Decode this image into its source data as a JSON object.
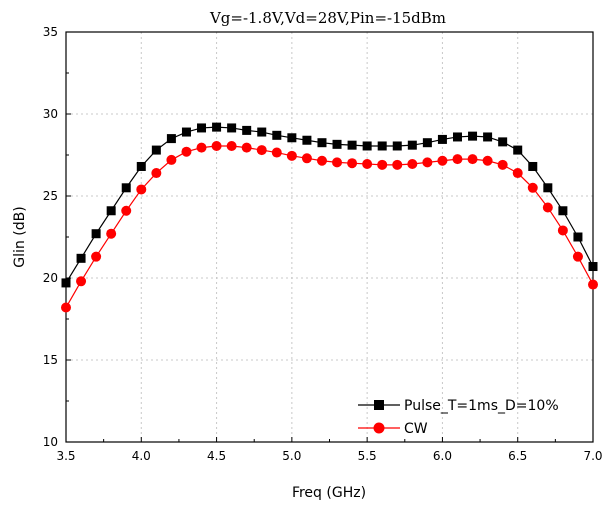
{
  "chart_data": {
    "type": "line",
    "title": "Vg=-1.8V,Vd=28V,Pin=-15dBm",
    "xlabel": "Freq (GHz)",
    "ylabel": "Glin (dB)",
    "xlim": [
      3.5,
      7.0
    ],
    "ylim": [
      10,
      35
    ],
    "xticks": [
      "3.5",
      "4.0",
      "4.5",
      "5.0",
      "5.5",
      "6.0",
      "6.5",
      "7.0"
    ],
    "yticks": [
      "10",
      "15",
      "20",
      "25",
      "30",
      "35"
    ],
    "grid": true,
    "legend_position": "bottom-right",
    "x": [
      3.5,
      3.6,
      3.7,
      3.8,
      3.9,
      4.0,
      4.1,
      4.2,
      4.3,
      4.4,
      4.5,
      4.6,
      4.7,
      4.8,
      4.9,
      5.0,
      5.1,
      5.2,
      5.3,
      5.4,
      5.5,
      5.6,
      5.7,
      5.8,
      5.9,
      6.0,
      6.1,
      6.2,
      6.3,
      6.4,
      6.5,
      6.6,
      6.7,
      6.8,
      6.9,
      7.0
    ],
    "series": [
      {
        "name": "Pulse_T=1ms_D=10%",
        "color": "#000000",
        "marker": "square",
        "values": [
          19.7,
          21.2,
          22.7,
          24.1,
          25.5,
          26.8,
          27.8,
          28.5,
          28.9,
          29.15,
          29.2,
          29.15,
          29.0,
          28.9,
          28.7,
          28.55,
          28.4,
          28.25,
          28.15,
          28.1,
          28.05,
          28.05,
          28.05,
          28.1,
          28.25,
          28.45,
          28.6,
          28.65,
          28.6,
          28.3,
          27.8,
          26.8,
          25.5,
          24.1,
          22.5,
          20.7
        ]
      },
      {
        "name": "CW",
        "color": "#ff0000",
        "marker": "circle",
        "values": [
          18.2,
          19.8,
          21.3,
          22.7,
          24.1,
          25.4,
          26.4,
          27.2,
          27.7,
          27.95,
          28.05,
          28.05,
          27.95,
          27.8,
          27.65,
          27.45,
          27.3,
          27.15,
          27.05,
          27.0,
          26.95,
          26.9,
          26.9,
          26.95,
          27.05,
          27.15,
          27.25,
          27.25,
          27.15,
          26.9,
          26.4,
          25.5,
          24.3,
          22.9,
          21.3,
          19.6
        ]
      }
    ]
  }
}
